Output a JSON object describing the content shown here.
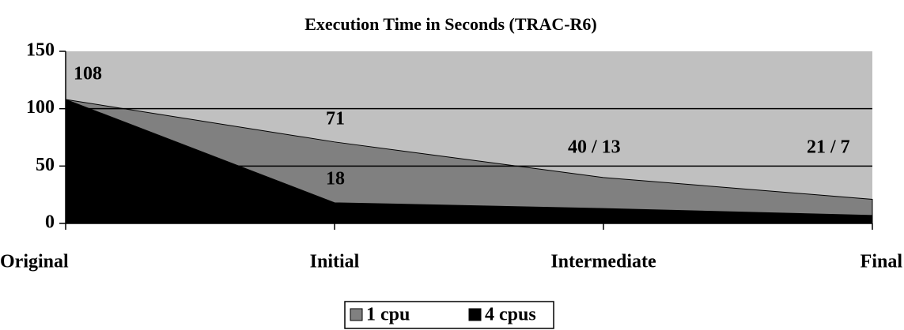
{
  "chart_data": {
    "type": "area",
    "title": "Execution Time in Seconds (TRAC-R6)",
    "categories": [
      "Original",
      "Initial",
      "Intermediate",
      "Final"
    ],
    "series": [
      {
        "name": "1 cpu",
        "color": "#808080",
        "values": [
          108,
          71,
          40,
          21
        ]
      },
      {
        "name": "4 cpus",
        "color": "#000000",
        "values": [
          108,
          18,
          13,
          7
        ]
      }
    ],
    "annotations": [
      "108",
      "71",
      "18",
      "40 / 13",
      "21 / 7"
    ],
    "ylim": [
      0,
      150
    ],
    "yticks": [
      0,
      50,
      100,
      150
    ],
    "grid": true,
    "plot_background": "#c0c0c0",
    "legend": "bottom"
  }
}
